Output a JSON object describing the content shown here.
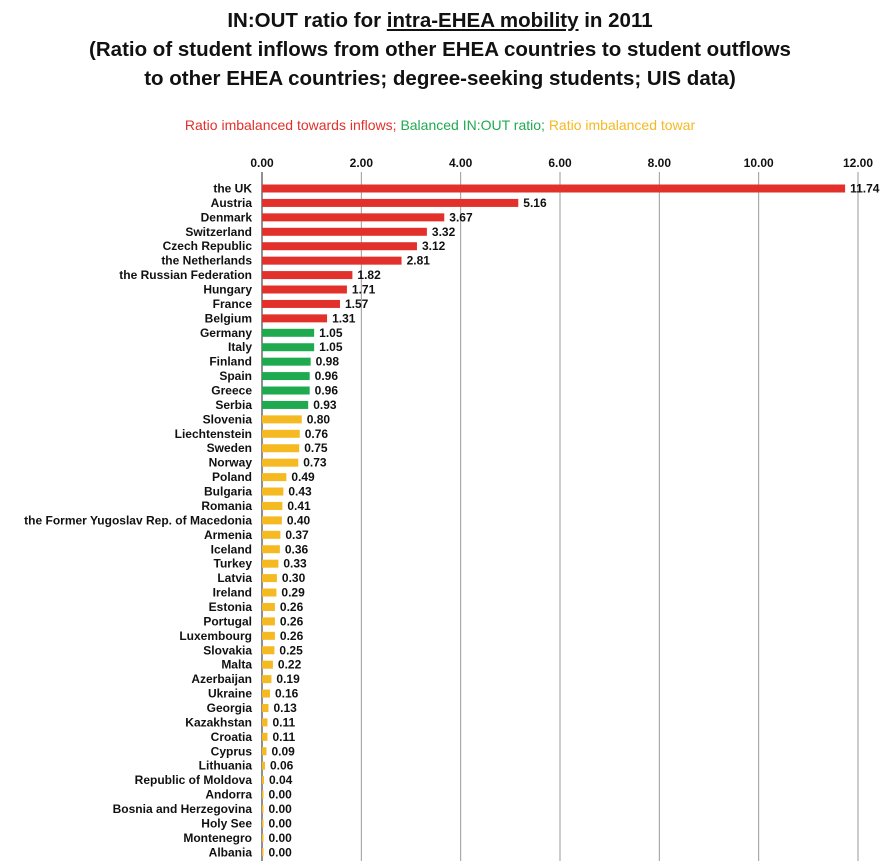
{
  "title": {
    "line1_pre": "IN:OUT ratio for ",
    "line1_underlined": "intra-EHEA mobility",
    "line1_post": " in 2011",
    "line2": "(Ratio of student inflows from other EHEA countries to student outflows",
    "line3": "to other EHEA countries; degree-seeking students; UIS data)"
  },
  "legend": {
    "inflows": "Ratio imbalanced towards inflows; ",
    "balanced": "Balanced IN:OUT ratio; ",
    "outflows": "Ratio imbalanced towar"
  },
  "colors": {
    "inflows": "#e2312b",
    "balanced": "#1faa50",
    "outflows": "#f5b922"
  },
  "chart_data": {
    "type": "bar",
    "orientation": "horizontal",
    "xlim": [
      0,
      12
    ],
    "x_ticks": [
      "0.00",
      "2.00",
      "4.00",
      "6.00",
      "8.00",
      "10.00",
      "12.00"
    ],
    "x_tick_values": [
      0,
      2,
      4,
      6,
      8,
      10,
      12
    ],
    "grid": "vertical",
    "x_axis_position": "top",
    "categories": [
      "the UK",
      "Austria",
      "Denmark",
      "Switzerland",
      "Czech Republic",
      "the Netherlands",
      "the Russian Federation",
      "Hungary",
      "France",
      "Belgium",
      "Germany",
      "Italy",
      "Finland",
      "Spain",
      "Greece",
      "Serbia",
      "Slovenia",
      "Liechtenstein",
      "Sweden",
      "Norway",
      "Poland",
      "Bulgaria",
      "Romania",
      "the Former Yugoslav Rep. of Macedonia",
      "Armenia",
      "Iceland",
      "Turkey",
      "Latvia",
      "Ireland",
      "Estonia",
      "Portugal",
      "Luxembourg",
      "Slovakia",
      "Malta",
      "Azerbaijan",
      "Ukraine",
      "Georgia",
      "Kazakhstan",
      "Croatia",
      "Cyprus",
      "Lithuania",
      "Republic of Moldova",
      "Andorra",
      "Bosnia and Herzegovina",
      "Holy See",
      "Montenegro",
      "Albania"
    ],
    "values": [
      11.74,
      5.16,
      3.67,
      3.32,
      3.12,
      2.81,
      1.82,
      1.71,
      1.57,
      1.31,
      1.05,
      1.05,
      0.98,
      0.96,
      0.96,
      0.93,
      0.8,
      0.76,
      0.75,
      0.73,
      0.49,
      0.43,
      0.41,
      0.4,
      0.37,
      0.36,
      0.33,
      0.3,
      0.29,
      0.26,
      0.26,
      0.26,
      0.25,
      0.22,
      0.19,
      0.16,
      0.13,
      0.11,
      0.11,
      0.09,
      0.06,
      0.04,
      0.0,
      0.0,
      0.0,
      0.0,
      0.0
    ],
    "labels": [
      "11.74",
      "5.16",
      "3.67",
      "3.32",
      "3.12",
      "2.81",
      "1.82",
      "1.71",
      "1.57",
      "1.31",
      "1.05",
      "1.05",
      "0.98",
      "0.96",
      "0.96",
      "0.93",
      "0.80",
      "0.76",
      "0.75",
      "0.73",
      "0.49",
      "0.43",
      "0.41",
      "0.40",
      "0.37",
      "0.36",
      "0.33",
      "0.30",
      "0.29",
      "0.26",
      "0.26",
      "0.26",
      "0.25",
      "0.22",
      "0.19",
      "0.16",
      "0.13",
      "0.11",
      "0.11",
      "0.09",
      "0.06",
      "0.04",
      "0.00",
      "0.00",
      "0.00",
      "0.00",
      "0.00"
    ],
    "groups": [
      "inflows",
      "inflows",
      "inflows",
      "inflows",
      "inflows",
      "inflows",
      "inflows",
      "inflows",
      "inflows",
      "inflows",
      "balanced",
      "balanced",
      "balanced",
      "balanced",
      "balanced",
      "balanced",
      "outflows",
      "outflows",
      "outflows",
      "outflows",
      "outflows",
      "outflows",
      "outflows",
      "outflows",
      "outflows",
      "outflows",
      "outflows",
      "outflows",
      "outflows",
      "outflows",
      "outflows",
      "outflows",
      "outflows",
      "outflows",
      "outflows",
      "outflows",
      "outflows",
      "outflows",
      "outflows",
      "outflows",
      "outflows",
      "outflows",
      "outflows",
      "outflows",
      "outflows",
      "outflows",
      "outflows"
    ]
  }
}
